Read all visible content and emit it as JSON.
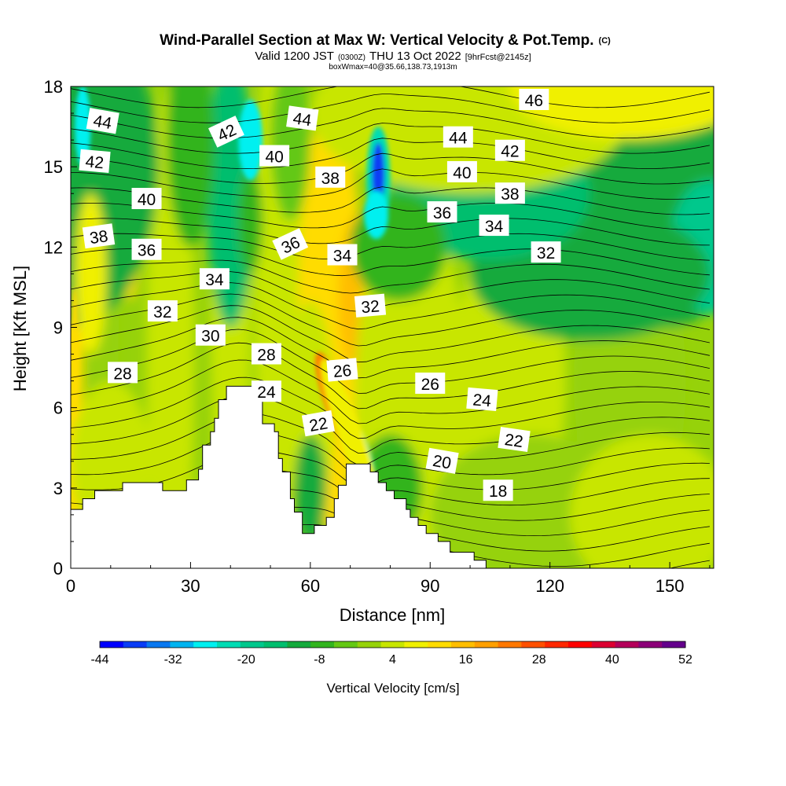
{
  "chart_data": {
    "type": "heatmap",
    "title": "Wind-Parallel Section at Max W: Vertical Velocity & Pot.Temp.",
    "title_mark": "(C)",
    "subtitle": {
      "prefix": "Valid 1200 JST",
      "utc": "(0300Z)",
      "date": "THU 13 Oct 2022",
      "fcst": "[9hrFcst@2145z]"
    },
    "box_info": "boxWmax=40@35.66,138.73,1913m",
    "xlabel": "Distance [nm]",
    "ylabel": "Height [Kft MSL]",
    "xlim": [
      0,
      161
    ],
    "ylim": [
      0,
      18
    ],
    "x_ticks": [
      0,
      30,
      60,
      90,
      120,
      150
    ],
    "y_ticks": [
      0,
      3,
      6,
      9,
      12,
      15,
      18
    ],
    "colorbar": {
      "label": "Vertical Velocity [cm/s]",
      "levels": [
        -44,
        -40,
        -36,
        -32,
        -28,
        -24,
        -20,
        -16,
        -12,
        -8,
        -4,
        0,
        4,
        8,
        12,
        16,
        20,
        24,
        28,
        32,
        36,
        40,
        44,
        48,
        52
      ],
      "tick_labels": [
        "-44",
        "-32",
        "-20",
        "-8",
        "4",
        "16",
        "28",
        "40",
        "52"
      ],
      "colors": [
        "#0000ff",
        "#0a3cf5",
        "#0a78f0",
        "#00b4f0",
        "#00f0f0",
        "#00dcb4",
        "#00c88c",
        "#00be6e",
        "#14aa3c",
        "#32b41e",
        "#64c814",
        "#96d20a",
        "#c8e600",
        "#f0f000",
        "#ffdc00",
        "#ffbe00",
        "#ffa000",
        "#ff7800",
        "#ff5000",
        "#ff2800",
        "#ff0000",
        "#dc0032",
        "#b4005a",
        "#8c0078",
        "#64008c"
      ]
    },
    "theta_labels": [
      {
        "text": "44",
        "x": 8,
        "y": 16.7,
        "rot": 10
      },
      {
        "text": "42",
        "x": 6,
        "y": 15.2,
        "rot": 5
      },
      {
        "text": "40",
        "x": 19,
        "y": 13.8,
        "rot": 0
      },
      {
        "text": "38",
        "x": 7,
        "y": 12.4,
        "rot": -8
      },
      {
        "text": "36",
        "x": 19,
        "y": 11.9,
        "rot": 0
      },
      {
        "text": "42",
        "x": 39,
        "y": 16.3,
        "rot": -25
      },
      {
        "text": "44",
        "x": 58,
        "y": 16.8,
        "rot": 8
      },
      {
        "text": "40",
        "x": 51,
        "y": 15.4,
        "rot": 0
      },
      {
        "text": "38",
        "x": 65,
        "y": 14.6,
        "rot": 0
      },
      {
        "text": "36",
        "x": 55,
        "y": 12.1,
        "rot": -25
      },
      {
        "text": "34",
        "x": 36,
        "y": 10.8,
        "rot": 0
      },
      {
        "text": "34",
        "x": 68,
        "y": 11.7,
        "rot": 0
      },
      {
        "text": "32",
        "x": 23,
        "y": 9.6,
        "rot": 0
      },
      {
        "text": "32",
        "x": 75,
        "y": 9.8,
        "rot": -5
      },
      {
        "text": "30",
        "x": 35,
        "y": 8.7,
        "rot": 0
      },
      {
        "text": "28",
        "x": 49,
        "y": 8.0,
        "rot": 0
      },
      {
        "text": "28",
        "x": 13,
        "y": 7.3,
        "rot": 0
      },
      {
        "text": "26",
        "x": 68,
        "y": 7.4,
        "rot": -5
      },
      {
        "text": "26",
        "x": 90,
        "y": 6.9,
        "rot": 0
      },
      {
        "text": "24",
        "x": 49,
        "y": 6.6,
        "rot": 0
      },
      {
        "text": "24",
        "x": 103,
        "y": 6.3,
        "rot": 5
      },
      {
        "text": "22",
        "x": 62,
        "y": 5.4,
        "rot": -10
      },
      {
        "text": "22",
        "x": 111,
        "y": 4.8,
        "rot": 8
      },
      {
        "text": "20",
        "x": 93,
        "y": 4.0,
        "rot": 10
      },
      {
        "text": "18",
        "x": 107,
        "y": 2.9,
        "rot": 0
      },
      {
        "text": "46",
        "x": 116,
        "y": 17.5,
        "rot": 0
      },
      {
        "text": "44",
        "x": 97,
        "y": 16.1,
        "rot": 0
      },
      {
        "text": "42",
        "x": 110,
        "y": 15.6,
        "rot": 0
      },
      {
        "text": "40",
        "x": 98,
        "y": 14.8,
        "rot": 0
      },
      {
        "text": "38",
        "x": 110,
        "y": 14.0,
        "rot": 0
      },
      {
        "text": "36",
        "x": 93,
        "y": 13.3,
        "rot": 0
      },
      {
        "text": "34",
        "x": 106,
        "y": 12.8,
        "rot": 0
      },
      {
        "text": "32",
        "x": 119,
        "y": 11.8,
        "rot": 0
      }
    ],
    "terrain": [
      [
        0,
        2.2
      ],
      [
        3,
        2.2
      ],
      [
        3,
        2.6
      ],
      [
        6,
        2.6
      ],
      [
        6,
        2.9
      ],
      [
        13,
        2.9
      ],
      [
        13,
        3.2
      ],
      [
        23,
        3.2
      ],
      [
        23,
        2.9
      ],
      [
        29,
        2.9
      ],
      [
        29,
        3.3
      ],
      [
        32,
        3.3
      ],
      [
        32,
        3.7
      ],
      [
        33,
        3.7
      ],
      [
        33,
        4.6
      ],
      [
        35,
        4.6
      ],
      [
        35,
        5.1
      ],
      [
        36,
        5.1
      ],
      [
        36,
        5.6
      ],
      [
        37,
        5.6
      ],
      [
        37,
        6.3
      ],
      [
        39,
        6.3
      ],
      [
        39,
        6.8
      ],
      [
        47,
        6.8
      ],
      [
        47,
        6.3
      ],
      [
        48,
        6.3
      ],
      [
        48,
        5.4
      ],
      [
        51,
        5.4
      ],
      [
        51,
        5.1
      ],
      [
        52,
        5.1
      ],
      [
        52,
        4.1
      ],
      [
        53,
        4.1
      ],
      [
        53,
        3.6
      ],
      [
        55,
        3.6
      ],
      [
        55,
        2.6
      ],
      [
        56,
        2.6
      ],
      [
        56,
        2.1
      ],
      [
        58,
        2.1
      ],
      [
        58,
        1.3
      ],
      [
        61,
        1.3
      ],
      [
        61,
        1.6
      ],
      [
        64,
        1.6
      ],
      [
        64,
        1.9
      ],
      [
        66,
        1.9
      ],
      [
        66,
        2.6
      ],
      [
        67,
        2.6
      ],
      [
        67,
        3.1
      ],
      [
        69,
        3.1
      ],
      [
        69,
        3.9
      ],
      [
        75,
        3.9
      ],
      [
        75,
        3.6
      ],
      [
        77,
        3.6
      ],
      [
        77,
        3.2
      ],
      [
        79,
        3.2
      ],
      [
        79,
        2.9
      ],
      [
        81,
        2.9
      ],
      [
        81,
        2.6
      ],
      [
        84,
        2.6
      ],
      [
        84,
        2.2
      ],
      [
        85,
        2.2
      ],
      [
        85,
        1.9
      ],
      [
        87,
        1.9
      ],
      [
        87,
        1.6
      ],
      [
        89,
        1.6
      ],
      [
        89,
        1.3
      ],
      [
        92,
        1.3
      ],
      [
        92,
        1.0
      ],
      [
        95,
        1.0
      ],
      [
        95,
        0.6
      ],
      [
        101,
        0.6
      ],
      [
        101,
        0.3
      ],
      [
        104,
        0.3
      ],
      [
        104,
        0.0
      ]
    ]
  }
}
